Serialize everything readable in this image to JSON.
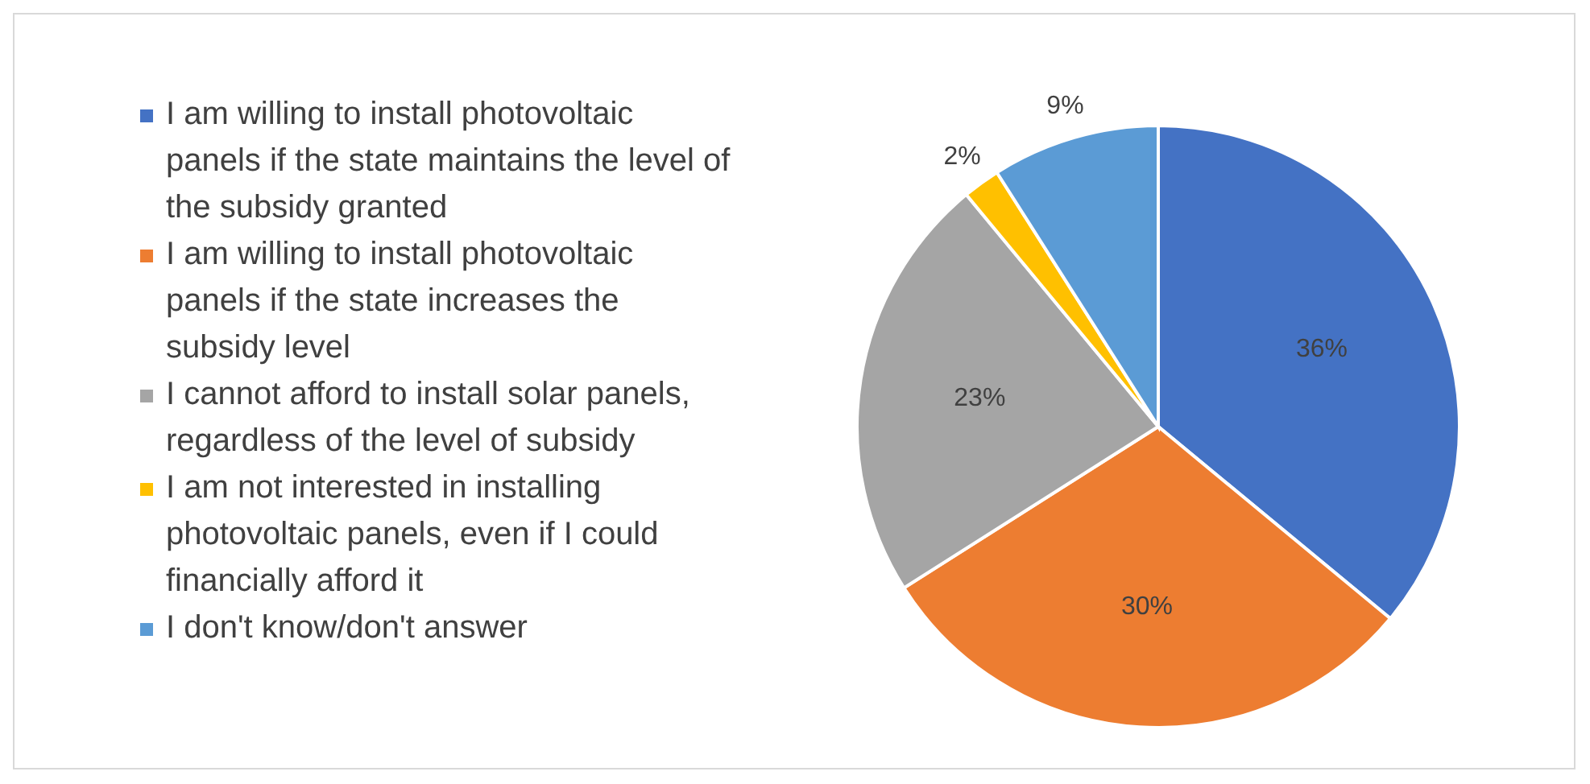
{
  "chart_data": {
    "type": "pie",
    "categories": [
      "I am willing to install photovoltaic panels if the state maintains the level of the subsidy granted",
      "I am willing to install photovoltaic panels if the state increases the subsidy level",
      "I cannot afford to install solar panels, regardless of the level of subsidy",
      "I am not interested in installing photovoltaic panels, even if I could financially afford it",
      "I don't know/don't answer"
    ],
    "values": [
      36,
      30,
      23,
      2,
      9
    ],
    "colors": [
      "#4472c4",
      "#ed7d31",
      "#a5a5a5",
      "#ffc000",
      "#5b9bd5"
    ],
    "value_labels": [
      "36%",
      "30%",
      "23%",
      "2%",
      "9%"
    ],
    "legend": "left"
  }
}
